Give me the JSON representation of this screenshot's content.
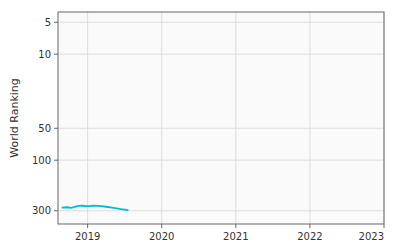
{
  "chart_data": {
    "type": "line",
    "ylabel": "World Ranking",
    "x": [
      2018.65,
      2018.72,
      2018.78,
      2018.83,
      2018.88,
      2018.93,
      2018.98,
      2019.02,
      2019.07,
      2019.15,
      2019.25,
      2019.35,
      2019.45,
      2019.55
    ],
    "values": [
      280,
      278,
      282,
      275,
      270,
      268,
      272,
      271,
      268,
      270,
      275,
      282,
      290,
      296
    ],
    "color": "#00bcd4",
    "log": "y",
    "xlim": [
      2018.6,
      2023
    ],
    "ylim": [
      400,
      4
    ],
    "xticks": [
      2019,
      2020,
      2021,
      2022,
      2023
    ],
    "yticks": [
      5,
      10,
      50,
      100,
      300
    ],
    "grid": true
  }
}
